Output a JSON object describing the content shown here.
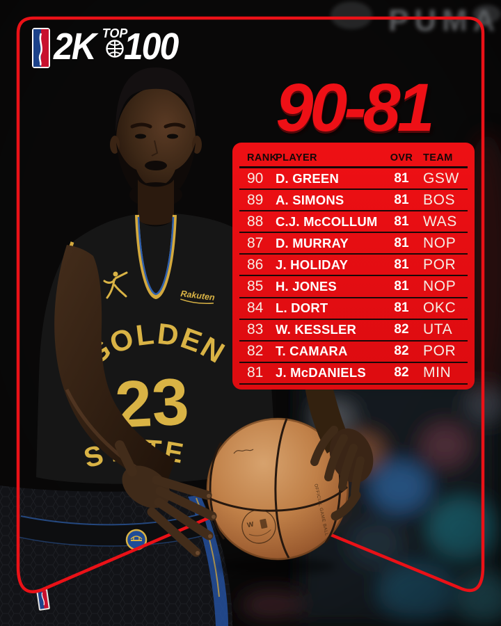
{
  "header_logo": {
    "league": "NBA",
    "brand": "2K",
    "top": "TOP",
    "hundred": "100"
  },
  "title": {
    "range": "90-81"
  },
  "ranking_table": {
    "headers": {
      "rank": "RANK",
      "player": "PLAYER",
      "ovr": "OVR",
      "team": "TEAM"
    },
    "rows": [
      {
        "rank": "90",
        "player": "D. GREEN",
        "ovr": "81",
        "team": "GSW"
      },
      {
        "rank": "89",
        "player": "A. SIMONS",
        "ovr": "81",
        "team": "BOS"
      },
      {
        "rank": "88",
        "player": "C.J. McCOLLUM",
        "ovr": "81",
        "team": "WAS"
      },
      {
        "rank": "87",
        "player": "D. MURRAY",
        "ovr": "81",
        "team": "NOP"
      },
      {
        "rank": "86",
        "player": "J. HOLIDAY",
        "ovr": "81",
        "team": "POR"
      },
      {
        "rank": "85",
        "player": "H. JONES",
        "ovr": "81",
        "team": "NOP"
      },
      {
        "rank": "84",
        "player": "L. DORT",
        "ovr": "81",
        "team": "OKC"
      },
      {
        "rank": "83",
        "player": "W. KESSLER",
        "ovr": "82",
        "team": "UTA"
      },
      {
        "rank": "82",
        "player": "T. CAMARA",
        "ovr": "82",
        "team": "POR"
      },
      {
        "rank": "81",
        "player": "J. McDANIELS",
        "ovr": "82",
        "team": "MIN"
      }
    ]
  },
  "scene": {
    "arena_sign": "PUMA",
    "jersey": {
      "team_top": "GOLDEN",
      "team_bottom": "STATE",
      "number": "23",
      "sponsor": "Rakuten"
    },
    "ball_marking": "OFFICIAL GAME BALL"
  },
  "colors": {
    "frame_red": "#ea1117",
    "panel_red": "#e30d12",
    "title_red": "#ee1016",
    "jersey_gold": "#d9b345",
    "text_white": "#ffffff",
    "muted_white": "#f6ece4",
    "line_black": "#1a0808",
    "ball_orange": "#bf7f47",
    "nba_blue": "#1d428a",
    "nba_red": "#c8102e"
  }
}
